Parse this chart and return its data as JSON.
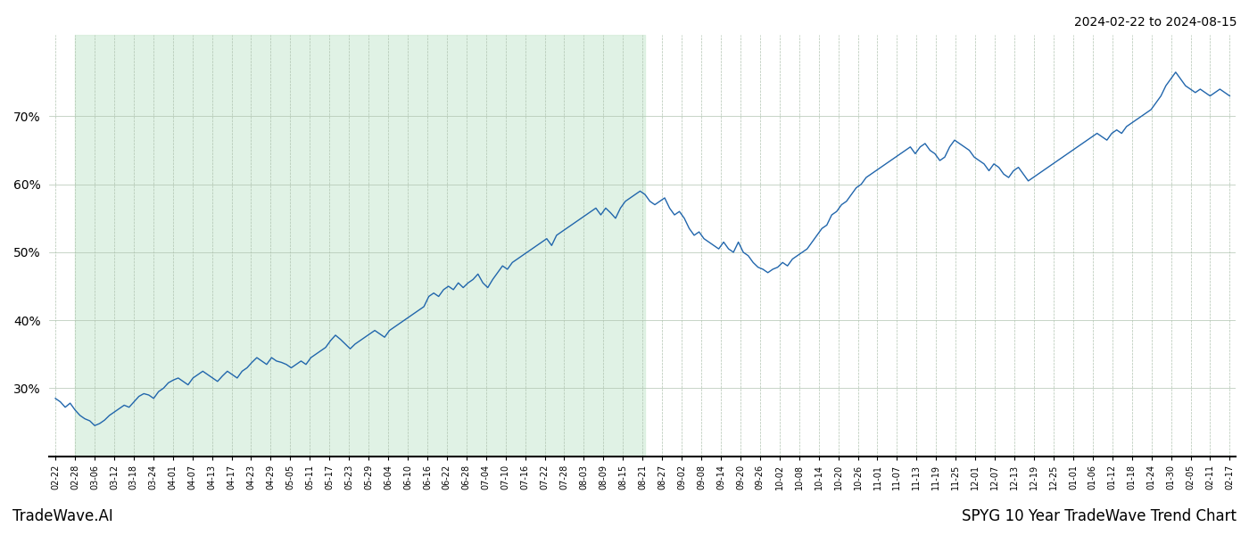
{
  "title_top_right": "2024-02-22 to 2024-08-15",
  "footer_left": "TradeWave.AI",
  "footer_right": "SPYG 10 Year TradeWave Trend Chart",
  "line_color": "#2166ac",
  "shade_color": "#d4edda",
  "shade_alpha": 0.7,
  "background_color": "#ffffff",
  "grid_color": "#b0c4b0",
  "ylim": [
    20,
    82
  ],
  "yticks": [
    30,
    40,
    50,
    60,
    70
  ],
  "x_labels": [
    "02-22",
    "02-28",
    "03-06",
    "03-12",
    "03-18",
    "03-24",
    "04-01",
    "04-07",
    "04-13",
    "04-17",
    "04-23",
    "04-29",
    "05-05",
    "05-11",
    "05-17",
    "05-23",
    "05-29",
    "06-04",
    "06-10",
    "06-16",
    "06-22",
    "06-28",
    "07-04",
    "07-10",
    "07-16",
    "07-22",
    "07-28",
    "08-03",
    "08-09",
    "08-15",
    "08-21",
    "08-27",
    "09-02",
    "09-08",
    "09-14",
    "09-20",
    "09-26",
    "10-02",
    "10-08",
    "10-14",
    "10-20",
    "10-26",
    "11-01",
    "11-07",
    "11-13",
    "11-19",
    "11-25",
    "12-01",
    "12-07",
    "12-13",
    "12-19",
    "12-25",
    "01-01",
    "01-06",
    "01-12",
    "01-18",
    "01-24",
    "01-30",
    "02-05",
    "02-11",
    "02-17"
  ],
  "shade_start_label": "02-28",
  "shade_end_label": "08-21",
  "y_values": [
    28.5,
    28.0,
    27.2,
    27.8,
    26.8,
    26.0,
    25.5,
    25.2,
    24.5,
    24.8,
    25.3,
    26.0,
    26.5,
    27.0,
    27.5,
    27.2,
    28.0,
    28.8,
    29.2,
    29.0,
    28.5,
    29.5,
    30.0,
    30.8,
    31.2,
    31.5,
    31.0,
    30.5,
    31.5,
    32.0,
    32.5,
    32.0,
    31.5,
    31.0,
    31.8,
    32.5,
    32.0,
    31.5,
    32.5,
    33.0,
    33.8,
    34.5,
    34.0,
    33.5,
    34.5,
    34.0,
    33.8,
    33.5,
    33.0,
    33.5,
    34.0,
    33.5,
    34.5,
    35.0,
    35.5,
    36.0,
    37.0,
    37.8,
    37.2,
    36.5,
    35.8,
    36.5,
    37.0,
    37.5,
    38.0,
    38.5,
    38.0,
    37.5,
    38.5,
    39.0,
    39.5,
    40.0,
    40.5,
    41.0,
    41.5,
    42.0,
    43.5,
    44.0,
    43.5,
    44.5,
    45.0,
    44.5,
    45.5,
    44.8,
    45.5,
    46.0,
    46.8,
    45.5,
    44.8,
    46.0,
    47.0,
    48.0,
    47.5,
    48.5,
    49.0,
    49.5,
    50.0,
    50.5,
    51.0,
    51.5,
    52.0,
    51.0,
    52.5,
    53.0,
    53.5,
    54.0,
    54.5,
    55.0,
    55.5,
    56.0,
    56.5,
    55.5,
    56.5,
    55.8,
    55.0,
    56.5,
    57.5,
    58.0,
    58.5,
    59.0,
    58.5,
    57.5,
    57.0,
    57.5,
    58.0,
    56.5,
    55.5,
    56.0,
    55.0,
    53.5,
    52.5,
    53.0,
    52.0,
    51.5,
    51.0,
    50.5,
    51.5,
    50.5,
    50.0,
    51.5,
    50.0,
    49.5,
    48.5,
    47.8,
    47.5,
    47.0,
    47.5,
    47.8,
    48.5,
    48.0,
    49.0,
    49.5,
    50.0,
    50.5,
    51.5,
    52.5,
    53.5,
    54.0,
    55.5,
    56.0,
    57.0,
    57.5,
    58.5,
    59.5,
    60.0,
    61.0,
    61.5,
    62.0,
    62.5,
    63.0,
    63.5,
    64.0,
    64.5,
    65.0,
    65.5,
    64.5,
    65.5,
    66.0,
    65.0,
    64.5,
    63.5,
    64.0,
    65.5,
    66.5,
    66.0,
    65.5,
    65.0,
    64.0,
    63.5,
    63.0,
    62.0,
    63.0,
    62.5,
    61.5,
    61.0,
    62.0,
    62.5,
    61.5,
    60.5,
    61.0,
    61.5,
    62.0,
    62.5,
    63.0,
    63.5,
    64.0,
    64.5,
    65.0,
    65.5,
    66.0,
    66.5,
    67.0,
    67.5,
    67.0,
    66.5,
    67.5,
    68.0,
    67.5,
    68.5,
    69.0,
    69.5,
    70.0,
    70.5,
    71.0,
    72.0,
    73.0,
    74.5,
    75.5,
    76.5,
    75.5,
    74.5,
    74.0,
    73.5,
    74.0,
    73.5,
    73.0,
    73.5,
    74.0,
    73.5,
    73.0
  ]
}
